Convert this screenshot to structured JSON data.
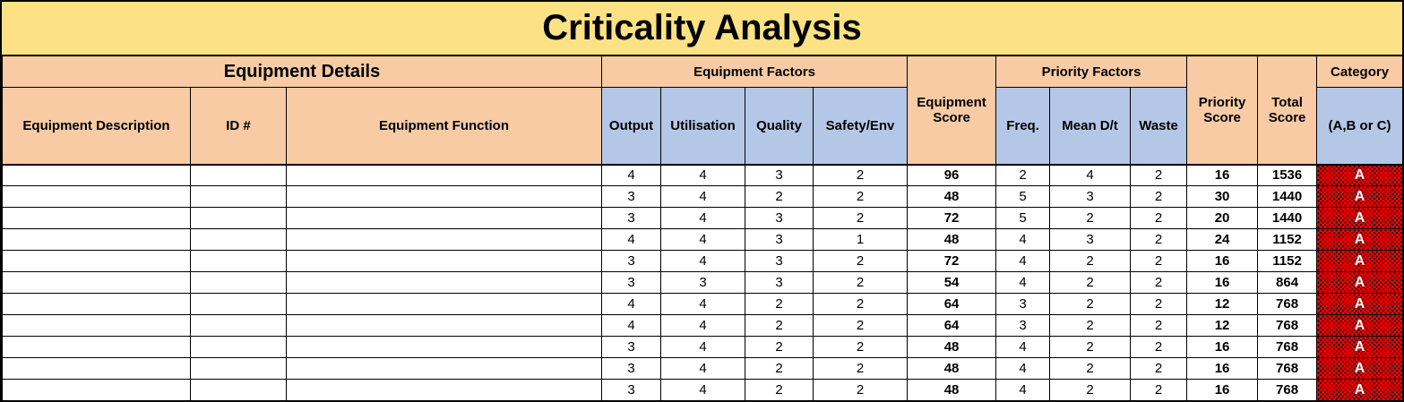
{
  "title": "Criticality Analysis",
  "colors": {
    "title_bg": "#FCE284",
    "header_bg": "#F8CBA4",
    "factor_bg": "#B4C7E7",
    "category_a_bg": "#FF0000",
    "category_a_fg": "#FFFFFF"
  },
  "table": {
    "groups": {
      "equipment_details": "Equipment Details",
      "equipment_factors": "Equipment Factors",
      "priority_factors": "Priority Factors",
      "category": "Category"
    },
    "columns": {
      "equipment_description": "Equipment Description",
      "id": "ID #",
      "equipment_function": "Equipment Function",
      "output": "Output",
      "utilisation": "Utilisation",
      "quality": "Quality",
      "safety_env": "Safety/Env",
      "equipment_score": "Equipment Score",
      "freq": "Freq.",
      "mean_dt": "Mean D/t",
      "waste": "Waste",
      "priority_score": "Priority Score",
      "total_score": "Total Score",
      "category_sub": "(A,B or C)"
    },
    "rows": [
      {
        "description": "",
        "id": "",
        "function": "",
        "output": 4,
        "utilisation": 4,
        "quality": 3,
        "safety_env": 2,
        "equipment_score": 96,
        "freq": 2,
        "mean_dt": 4,
        "waste": 2,
        "priority_score": 16,
        "total_score": 1536,
        "category": "A"
      },
      {
        "description": "",
        "id": "",
        "function": "",
        "output": 3,
        "utilisation": 4,
        "quality": 2,
        "safety_env": 2,
        "equipment_score": 48,
        "freq": 5,
        "mean_dt": 3,
        "waste": 2,
        "priority_score": 30,
        "total_score": 1440,
        "category": "A"
      },
      {
        "description": "",
        "id": "",
        "function": "",
        "output": 3,
        "utilisation": 4,
        "quality": 3,
        "safety_env": 2,
        "equipment_score": 72,
        "freq": 5,
        "mean_dt": 2,
        "waste": 2,
        "priority_score": 20,
        "total_score": 1440,
        "category": "A"
      },
      {
        "description": "",
        "id": "",
        "function": "",
        "output": 4,
        "utilisation": 4,
        "quality": 3,
        "safety_env": 1,
        "equipment_score": 48,
        "freq": 4,
        "mean_dt": 3,
        "waste": 2,
        "priority_score": 24,
        "total_score": 1152,
        "category": "A"
      },
      {
        "description": "",
        "id": "",
        "function": "",
        "output": 3,
        "utilisation": 4,
        "quality": 3,
        "safety_env": 2,
        "equipment_score": 72,
        "freq": 4,
        "mean_dt": 2,
        "waste": 2,
        "priority_score": 16,
        "total_score": 1152,
        "category": "A"
      },
      {
        "description": "",
        "id": "",
        "function": "",
        "output": 3,
        "utilisation": 3,
        "quality": 3,
        "safety_env": 2,
        "equipment_score": 54,
        "freq": 4,
        "mean_dt": 2,
        "waste": 2,
        "priority_score": 16,
        "total_score": 864,
        "category": "A"
      },
      {
        "description": "",
        "id": "",
        "function": "",
        "output": 4,
        "utilisation": 4,
        "quality": 2,
        "safety_env": 2,
        "equipment_score": 64,
        "freq": 3,
        "mean_dt": 2,
        "waste": 2,
        "priority_score": 12,
        "total_score": 768,
        "category": "A"
      },
      {
        "description": "",
        "id": "",
        "function": "",
        "output": 4,
        "utilisation": 4,
        "quality": 2,
        "safety_env": 2,
        "equipment_score": 64,
        "freq": 3,
        "mean_dt": 2,
        "waste": 2,
        "priority_score": 12,
        "total_score": 768,
        "category": "A"
      },
      {
        "description": "",
        "id": "",
        "function": "",
        "output": 3,
        "utilisation": 4,
        "quality": 2,
        "safety_env": 2,
        "equipment_score": 48,
        "freq": 4,
        "mean_dt": 2,
        "waste": 2,
        "priority_score": 16,
        "total_score": 768,
        "category": "A"
      },
      {
        "description": "",
        "id": "",
        "function": "",
        "output": 3,
        "utilisation": 4,
        "quality": 2,
        "safety_env": 2,
        "equipment_score": 48,
        "freq": 4,
        "mean_dt": 2,
        "waste": 2,
        "priority_score": 16,
        "total_score": 768,
        "category": "A"
      },
      {
        "description": "",
        "id": "",
        "function": "",
        "output": 3,
        "utilisation": 4,
        "quality": 2,
        "safety_env": 2,
        "equipment_score": 48,
        "freq": 4,
        "mean_dt": 2,
        "waste": 2,
        "priority_score": 16,
        "total_score": 768,
        "category": "A"
      }
    ]
  }
}
